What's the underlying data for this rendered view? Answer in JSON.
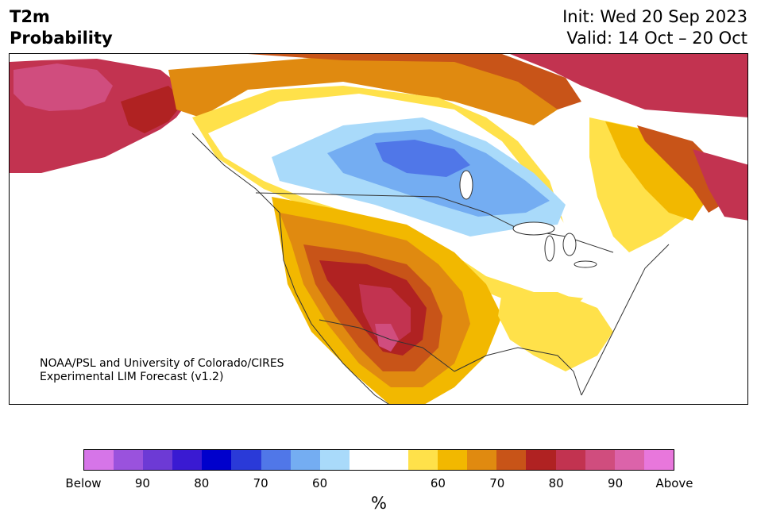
{
  "title": {
    "variable": "T2m",
    "type": "Probability"
  },
  "dates": {
    "init": "Init: Wed 20 Sep 2023",
    "valid": "Valid: 14 Oct – 20 Oct"
  },
  "credit": {
    "line1": "NOAA/PSL and University of Colorado/CIRES",
    "line2": "Experimental LIM Forecast (v1.2)"
  },
  "colorbar": {
    "unit": "%",
    "colors": [
      "#d675e8",
      "#9a52dd",
      "#6d3ad5",
      "#3a1ad2",
      "#0000cc",
      "#2a3ad8",
      "#5077e8",
      "#74adf2",
      "#a9dafa",
      "#ffffff",
      "#ffffff",
      "#ffe14a",
      "#f2b800",
      "#e08a10",
      "#c85418",
      "#b02222",
      "#c23350",
      "#d04d7e",
      "#dc63aa",
      "#e877dc"
    ],
    "ticks": [
      "Below",
      "90",
      "80",
      "70",
      "60",
      "60",
      "70",
      "80",
      "90",
      "Above"
    ]
  },
  "legend_colors": {
    "below_light": "#a9dafa",
    "below_mid": "#74adf2",
    "below_strong": "#5077e8",
    "above_light": "#ffe14a",
    "above_mid": "#f2b800",
    "above_orange": "#e08a10",
    "above_dark_orange": "#c85418",
    "above_red": "#b02222",
    "above_crimson": "#c23350",
    "above_pink": "#d04d7e"
  }
}
